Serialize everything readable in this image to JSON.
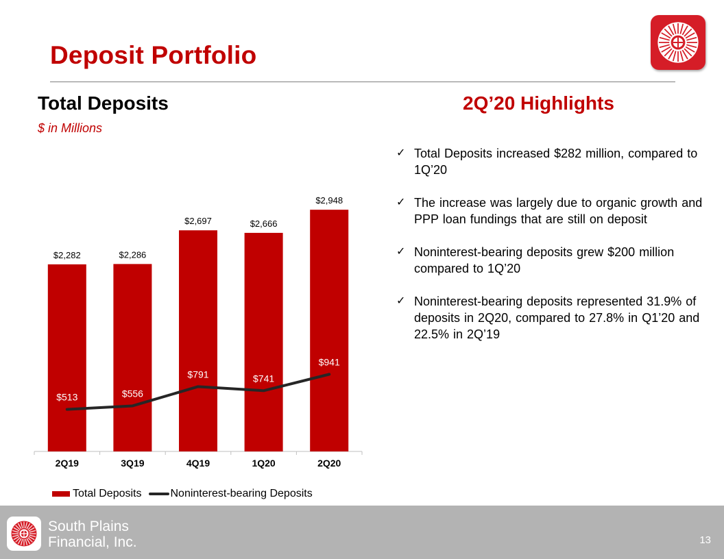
{
  "slide": {
    "title": "Deposit Portfolio",
    "page_number": "13"
  },
  "left_section": {
    "title": "Total Deposits",
    "subtitle": "$ in Millions"
  },
  "highlights": {
    "title": "2Q’20 Highlights",
    "check_icon": "✓",
    "items": [
      "Total Deposits increased $282 million, compared to 1Q’20",
      "The increase was largely due to organic growth and PPP loan fundings that are still on deposit",
      "Noninterest-bearing deposits grew $200 million compared to 1Q’20",
      "Noninterest-bearing deposits represented 31.9% of deposits in 2Q20, compared to 27.8% in Q1’20 and 22.5% in 2Q’19"
    ]
  },
  "footer": {
    "company_line1": "South Plains",
    "company_line2": "Financial, Inc.",
    "logo_icon": "south-plains-wheel-logo"
  },
  "colors": {
    "brand_red": "#c00000",
    "logo_red": "#d51d27",
    "line_dark": "#262626",
    "footer_gray": "#b3b3b3"
  },
  "chart_data": {
    "type": "bar",
    "categories": [
      "2Q19",
      "3Q19",
      "4Q19",
      "1Q20",
      "2Q20"
    ],
    "series": [
      {
        "name": "Total Deposits",
        "type": "bar",
        "values": [
          2282,
          2286,
          2697,
          2666,
          2948
        ],
        "labels": [
          "$2,282",
          "$2,286",
          "$2,697",
          "$2,666",
          "$2,948"
        ]
      },
      {
        "name": "Noninterest-bearing Deposits",
        "type": "line",
        "values": [
          513,
          556,
          791,
          741,
          941
        ],
        "labels": [
          "$513",
          "$556",
          "$791",
          "$741",
          "$941"
        ]
      }
    ],
    "ylim": [
      0,
      3200
    ],
    "grid": false,
    "legend": "bottom"
  }
}
